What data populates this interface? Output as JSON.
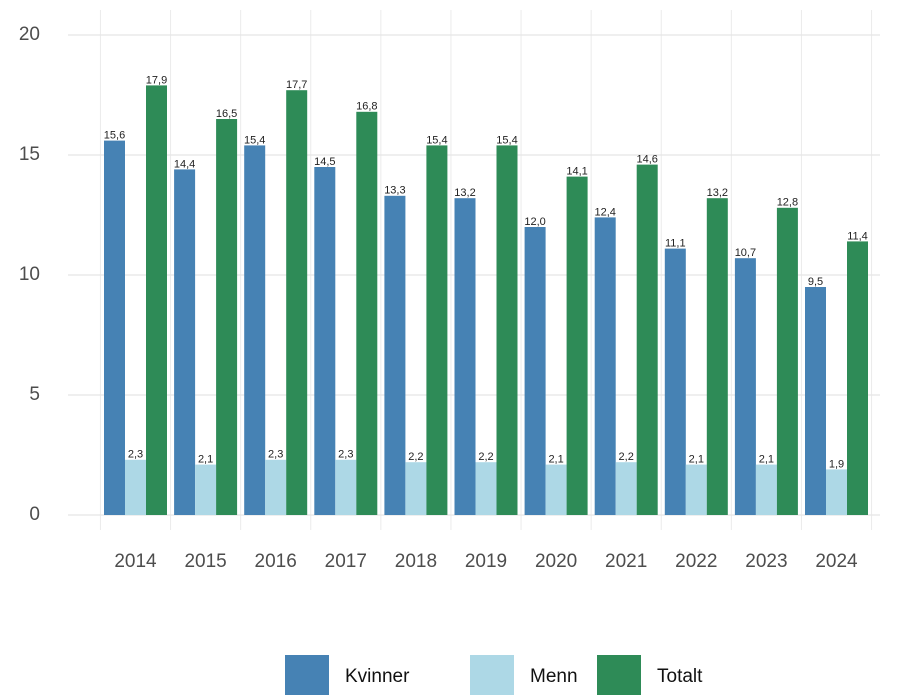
{
  "chart_data": {
    "type": "bar",
    "categories": [
      "2014",
      "2015",
      "2016",
      "2017",
      "2018",
      "2019",
      "2020",
      "2021",
      "2022",
      "2023",
      "2024"
    ],
    "series": [
      {
        "name": "Kvinner",
        "color": "#4682b4",
        "values": [
          15.6,
          14.4,
          15.4,
          14.5,
          13.3,
          13.2,
          12.0,
          12.4,
          11.1,
          10.7,
          9.5
        ],
        "value_labels": [
          "15,6",
          "14,4",
          "15,4",
          "14,5",
          "13,3",
          "13,2",
          "12,0",
          "12,4",
          "11,1",
          "10,7",
          "9,5"
        ]
      },
      {
        "name": "Menn",
        "color": "#add8e6",
        "values": [
          2.3,
          2.1,
          2.3,
          2.3,
          2.2,
          2.2,
          2.1,
          2.2,
          2.1,
          2.1,
          1.9
        ],
        "value_labels": [
          "2,3",
          "2,1",
          "2,3",
          "2,3",
          "2,2",
          "2,2",
          "2,1",
          "2,2",
          "2,1",
          "2,1",
          "1,9"
        ]
      },
      {
        "name": "Totalt",
        "color": "#2e8b57",
        "values": [
          17.9,
          16.5,
          17.7,
          16.8,
          15.4,
          15.4,
          14.1,
          14.6,
          13.2,
          12.8,
          11.4
        ],
        "value_labels": [
          "17,9",
          "16,5",
          "17,7",
          "16,8",
          "15,4",
          "15,4",
          "14,1",
          "14,6",
          "13,2",
          "12,8",
          "11,4"
        ]
      }
    ],
    "ylim": [
      0,
      20
    ],
    "yticks": [
      0,
      5,
      10,
      15,
      20
    ],
    "grid": true,
    "legend": "bottom"
  }
}
